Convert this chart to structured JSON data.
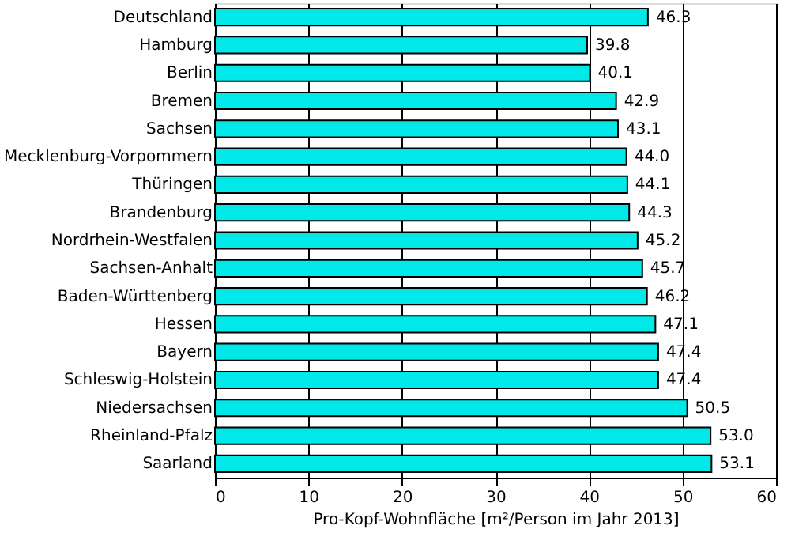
{
  "chart_data": {
    "type": "bar",
    "orientation": "horizontal",
    "xlabel": "Pro-Kopf-Wohnfläche [m²/Person im Jahr 2013]",
    "categories": [
      "Deutschland",
      "Hamburg",
      "Berlin",
      "Bremen",
      "Sachsen",
      "Mecklenburg-Vorpommern",
      "Thüringen",
      "Brandenburg",
      "Nordrhein-Westfalen",
      "Sachsen-Anhalt",
      "Baden-Württenberg",
      "Hessen",
      "Bayern",
      "Schleswig-Holstein",
      "Niedersachsen",
      "Rheinland-Pfalz",
      "Saarland"
    ],
    "values": [
      46.3,
      39.8,
      40.1,
      42.9,
      43.1,
      44.0,
      44.1,
      44.3,
      45.2,
      45.7,
      46.2,
      47.1,
      47.4,
      47.4,
      50.5,
      53.0,
      53.1
    ],
    "value_labels": [
      "46.3",
      "39.8",
      "40.1",
      "42.9",
      "43.1",
      "44.0",
      "44.1",
      "44.3",
      "45.2",
      "45.7",
      "46.2",
      "47.1",
      "47.4",
      "47.4",
      "50.5",
      "53.0",
      "53.1"
    ],
    "color": "#00e8e8",
    "xlim": [
      0,
      60
    ],
    "xticks": [
      0,
      10,
      20,
      30,
      40,
      50,
      60
    ],
    "grid": "x"
  }
}
